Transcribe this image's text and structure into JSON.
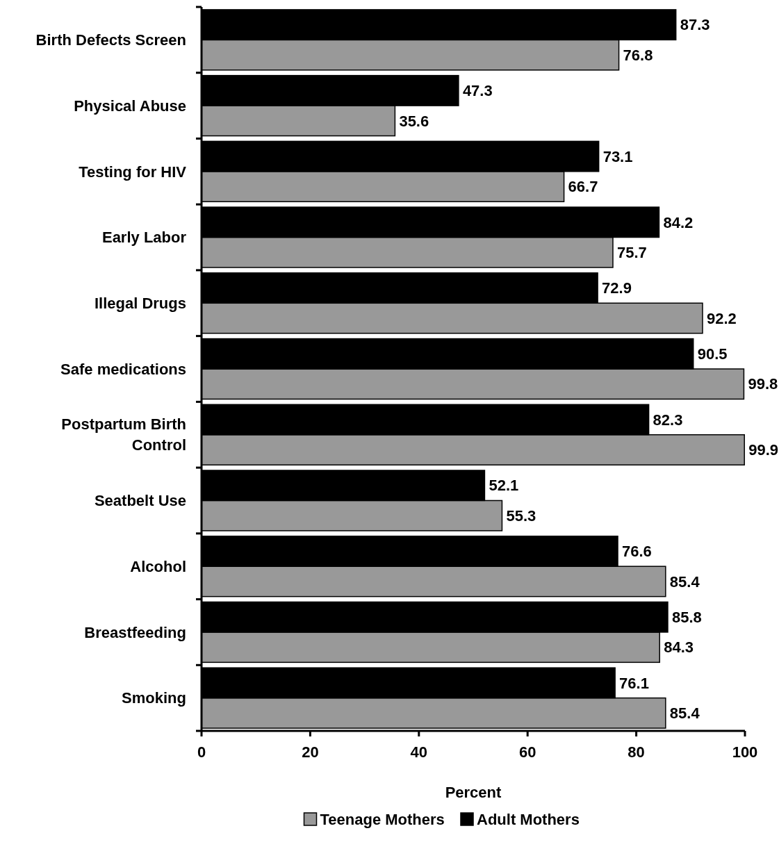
{
  "chart_data": {
    "type": "bar",
    "orientation": "horizontal",
    "xlabel": "Percent",
    "categories": [
      "Birth Defects Screen",
      "Physical Abuse",
      "Testing for HIV",
      "Early Labor",
      "Illegal Drugs",
      "Safe medications",
      "Postpartum Birth Control",
      "Seatbelt Use",
      "Alcohol",
      "Breastfeeding",
      "Smoking"
    ],
    "series": [
      {
        "name": "Teenage Mothers",
        "color": "#999999",
        "values": [
          76.8,
          35.6,
          66.7,
          75.7,
          92.2,
          99.8,
          99.9,
          55.3,
          85.4,
          84.3,
          85.4
        ]
      },
      {
        "name": "Adult Mothers",
        "color": "#000000",
        "values": [
          87.3,
          47.3,
          73.1,
          84.2,
          72.9,
          90.5,
          82.3,
          52.1,
          76.6,
          85.8,
          76.1
        ]
      }
    ],
    "xlim": [
      0,
      100
    ],
    "xticks": [
      0,
      20,
      40,
      60,
      80,
      100
    ],
    "data_labels": true,
    "grid": false,
    "legend": "bottom"
  }
}
